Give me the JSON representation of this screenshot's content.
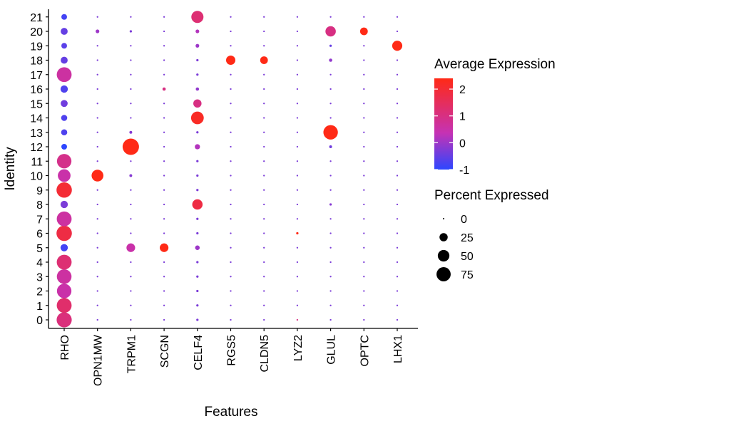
{
  "chart_data": {
    "type": "dotplot",
    "xlabel": "Features",
    "ylabel": "Identity",
    "features": [
      "RHO",
      "OPN1MW",
      "TRPM1",
      "SCGN",
      "CELF4",
      "RGS5",
      "CLDN5",
      "LYZ2",
      "GLUL",
      "OPTC",
      "LHX1"
    ],
    "identities": [
      "0",
      "1",
      "2",
      "3",
      "4",
      "5",
      "6",
      "7",
      "8",
      "9",
      "10",
      "11",
      "12",
      "13",
      "14",
      "15",
      "16",
      "17",
      "18",
      "19",
      "20",
      "21"
    ],
    "avg_expression": [
      [
        1.1,
        -0.3,
        -0.3,
        -0.3,
        -0.3,
        -0.3,
        -0.3,
        1.0,
        -0.3,
        -0.3,
        -0.3
      ],
      [
        1.3,
        -0.3,
        -0.3,
        -0.3,
        -0.3,
        -0.3,
        -0.3,
        -0.3,
        -0.3,
        -0.3,
        -0.3
      ],
      [
        0.5,
        -0.3,
        -0.3,
        -0.3,
        -0.3,
        -0.3,
        -0.3,
        -0.3,
        -0.3,
        -0.3,
        -0.3
      ],
      [
        0.6,
        -0.3,
        -0.3,
        -0.3,
        -0.3,
        -0.3,
        -0.3,
        -0.3,
        -0.3,
        -0.3,
        -0.3
      ],
      [
        1.2,
        -0.3,
        -0.3,
        -0.3,
        -0.3,
        -0.3,
        -0.3,
        -0.3,
        -0.3,
        -0.3,
        -0.3
      ],
      [
        -0.8,
        -0.3,
        0.5,
        2.4,
        0.0,
        -0.3,
        -0.3,
        -0.3,
        -0.3,
        -0.3,
        -0.3
      ],
      [
        1.8,
        -0.3,
        -0.3,
        -0.3,
        -0.3,
        -0.3,
        -0.3,
        2.4,
        -0.3,
        -0.3,
        -0.3
      ],
      [
        0.6,
        -0.3,
        -0.3,
        -0.3,
        -0.3,
        -0.3,
        -0.3,
        -0.3,
        -0.3,
        -0.3,
        -0.3
      ],
      [
        -0.3,
        -0.3,
        -0.3,
        -0.3,
        1.8,
        -0.3,
        -0.3,
        -0.3,
        -0.2,
        -0.3,
        -0.3
      ],
      [
        2.0,
        -0.3,
        -0.3,
        -0.3,
        -0.3,
        -0.3,
        -0.3,
        -0.3,
        -0.3,
        -0.3,
        -0.3
      ],
      [
        0.5,
        2.4,
        -0.2,
        -0.3,
        -0.3,
        -0.3,
        -0.3,
        -0.3,
        -0.3,
        -0.3,
        -0.3
      ],
      [
        0.9,
        -0.3,
        -0.3,
        -0.3,
        -0.3,
        -0.3,
        -0.3,
        -0.3,
        -0.3,
        -0.3,
        -0.3
      ],
      [
        -1.0,
        -0.3,
        2.4,
        -0.3,
        0.2,
        -0.3,
        -0.3,
        -0.3,
        -0.4,
        -0.3,
        -0.3
      ],
      [
        -0.7,
        -0.3,
        -0.2,
        -0.3,
        -0.3,
        -0.3,
        -0.3,
        -0.3,
        2.4,
        -0.3,
        -0.3
      ],
      [
        -0.7,
        -0.3,
        -0.3,
        -0.3,
        2.2,
        -0.3,
        -0.3,
        -0.3,
        -0.3,
        -0.3,
        -0.3
      ],
      [
        -0.4,
        -0.3,
        -0.3,
        -0.3,
        1.0,
        -0.3,
        -0.3,
        -0.3,
        -0.3,
        -0.3,
        -0.3
      ],
      [
        -0.7,
        -0.3,
        -0.3,
        1.0,
        -0.1,
        -0.3,
        -0.3,
        -0.3,
        -0.3,
        -0.3,
        -0.3
      ],
      [
        0.6,
        -0.3,
        -0.3,
        -0.3,
        -0.3,
        -0.3,
        -0.3,
        -0.3,
        -0.3,
        -0.3,
        -0.3
      ],
      [
        -0.5,
        -0.3,
        -0.3,
        -0.3,
        -0.3,
        2.4,
        2.4,
        -0.3,
        -0.1,
        -0.3,
        -0.3
      ],
      [
        -0.6,
        -0.3,
        -0.3,
        -0.3,
        0.0,
        -0.3,
        -0.3,
        -0.3,
        -0.5,
        -0.3,
        2.4
      ],
      [
        -0.5,
        0.0,
        -0.3,
        -0.3,
        0.2,
        -0.3,
        -0.3,
        -0.3,
        1.0,
        2.4,
        -0.3
      ],
      [
        -0.8,
        -0.3,
        -0.3,
        -0.3,
        1.2,
        -0.3,
        -0.3,
        -0.3,
        -0.3,
        -0.3,
        -0.3
      ]
    ],
    "pct_expressed": [
      [
        85,
        1,
        1,
        1,
        2,
        1,
        1,
        1,
        1,
        1,
        1
      ],
      [
        82,
        1,
        1,
        1,
        2,
        1,
        1,
        1,
        1,
        1,
        1
      ],
      [
        78,
        1,
        1,
        1,
        2,
        1,
        1,
        1,
        1,
        1,
        1
      ],
      [
        80,
        1,
        1,
        1,
        2,
        1,
        1,
        1,
        1,
        1,
        1
      ],
      [
        82,
        1,
        1,
        1,
        2,
        1,
        1,
        1,
        1,
        1,
        1
      ],
      [
        20,
        1,
        28,
        28,
        8,
        1,
        1,
        1,
        1,
        1,
        1
      ],
      [
        88,
        1,
        1,
        1,
        2,
        1,
        1,
        2,
        1,
        1,
        1
      ],
      [
        82,
        1,
        1,
        1,
        2,
        1,
        1,
        1,
        1,
        1,
        1
      ],
      [
        20,
        1,
        1,
        1,
        40,
        1,
        1,
        1,
        2,
        1,
        1
      ],
      [
        88,
        1,
        1,
        1,
        2,
        1,
        1,
        1,
        1,
        1,
        1
      ],
      [
        60,
        52,
        3,
        1,
        2,
        1,
        1,
        1,
        1,
        1,
        1
      ],
      [
        78,
        1,
        1,
        1,
        2,
        1,
        1,
        1,
        1,
        1,
        1
      ],
      [
        12,
        1,
        100,
        1,
        10,
        1,
        1,
        1,
        3,
        1,
        1
      ],
      [
        14,
        1,
        3,
        1,
        2,
        1,
        1,
        1,
        78,
        1,
        1
      ],
      [
        14,
        1,
        1,
        1,
        60,
        1,
        1,
        1,
        1,
        1,
        1
      ],
      [
        18,
        1,
        1,
        1,
        25,
        1,
        1,
        1,
        1,
        1,
        1
      ],
      [
        20,
        1,
        1,
        4,
        4,
        1,
        1,
        1,
        1,
        1,
        1
      ],
      [
        82,
        1,
        1,
        1,
        2,
        1,
        1,
        1,
        1,
        1,
        1
      ],
      [
        18,
        1,
        1,
        1,
        2,
        32,
        22,
        1,
        4,
        1,
        1
      ],
      [
        12,
        1,
        1,
        1,
        5,
        1,
        1,
        1,
        2,
        1,
        38
      ],
      [
        18,
        5,
        2,
        1,
        5,
        1,
        1,
        1,
        40,
        22,
        1
      ],
      [
        12,
        1,
        1,
        1,
        55,
        1,
        1,
        1,
        1,
        1,
        1
      ]
    ],
    "color_scale": {
      "low": "#2d46ff",
      "mid": "#c532b4",
      "high": "#ff2a16",
      "range": [
        -1,
        2.4
      ],
      "ticks": [
        2,
        1,
        0,
        -1
      ]
    },
    "size_scale": {
      "ticks": [
        0,
        25,
        50,
        75
      ]
    },
    "legend": {
      "color_title": "Average Expression",
      "size_title": "Percent Expressed"
    },
    "legend_placement": "right",
    "grid": false
  }
}
